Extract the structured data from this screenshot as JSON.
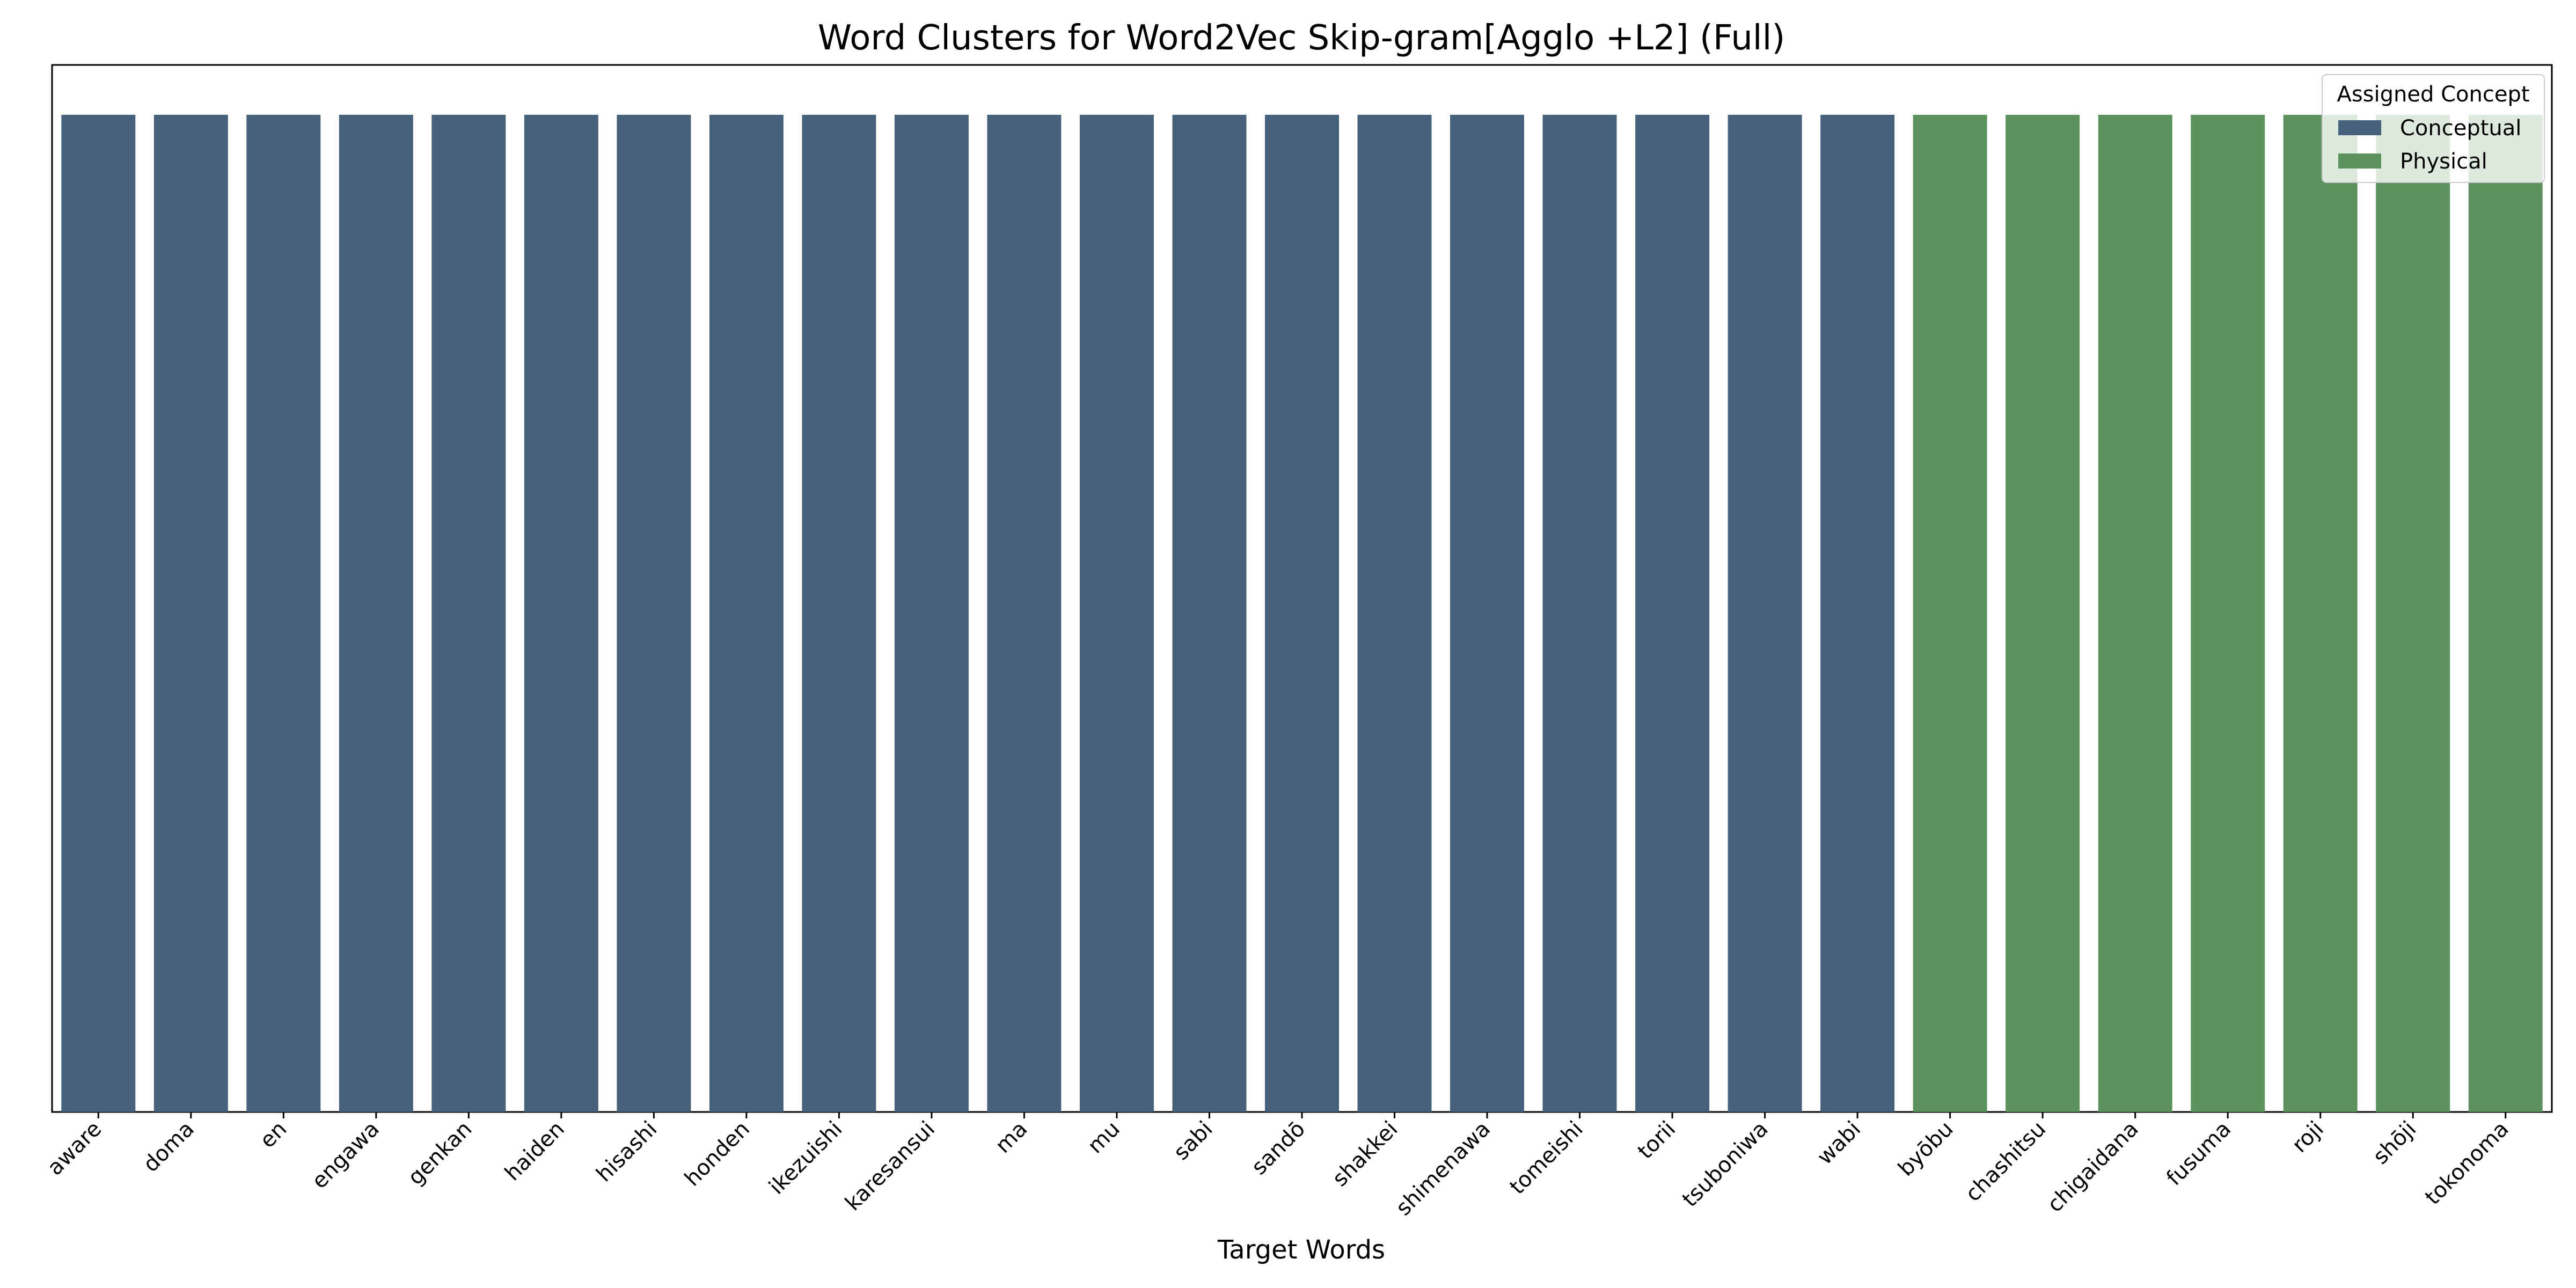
{
  "chart_data": {
    "type": "bar",
    "title": "Word Clusters for Word2Vec Skip-gram[Agglo +L2] (Full)",
    "xlabel": "Target Words",
    "ylabel": "",
    "ylim": [
      0,
      1.05
    ],
    "grid": false,
    "legend": {
      "title": "Assigned Concept",
      "placement": "top-right",
      "entries": [
        {
          "label": "Conceptual",
          "color": "#46627a"
        },
        {
          "label": "Physical",
          "color": "#5c925d"
        }
      ]
    },
    "categories": [
      "aware",
      "doma",
      "en",
      "engawa",
      "genkan",
      "haiden",
      "hisashi",
      "honden",
      "ikezuishi",
      "karesansui",
      "ma",
      "mu",
      "sabi",
      "sandō",
      "shakkei",
      "shimenawa",
      "tomeishi",
      "torii",
      "tsuboniwa",
      "wabi",
      "byōbu",
      "chashitsu",
      "chigaidana",
      "fusuma",
      "roji",
      "shōji",
      "tokonoma"
    ],
    "values": [
      1,
      1,
      1,
      1,
      1,
      1,
      1,
      1,
      1,
      1,
      1,
      1,
      1,
      1,
      1,
      1,
      1,
      1,
      1,
      1,
      1,
      1,
      1,
      1,
      1,
      1,
      1
    ],
    "concept": [
      "Conceptual",
      "Conceptual",
      "Conceptual",
      "Conceptual",
      "Conceptual",
      "Conceptual",
      "Conceptual",
      "Conceptual",
      "Conceptual",
      "Conceptual",
      "Conceptual",
      "Conceptual",
      "Conceptual",
      "Conceptual",
      "Conceptual",
      "Conceptual",
      "Conceptual",
      "Conceptual",
      "Conceptual",
      "Conceptual",
      "Physical",
      "Physical",
      "Physical",
      "Physical",
      "Physical",
      "Physical",
      "Physical"
    ]
  }
}
